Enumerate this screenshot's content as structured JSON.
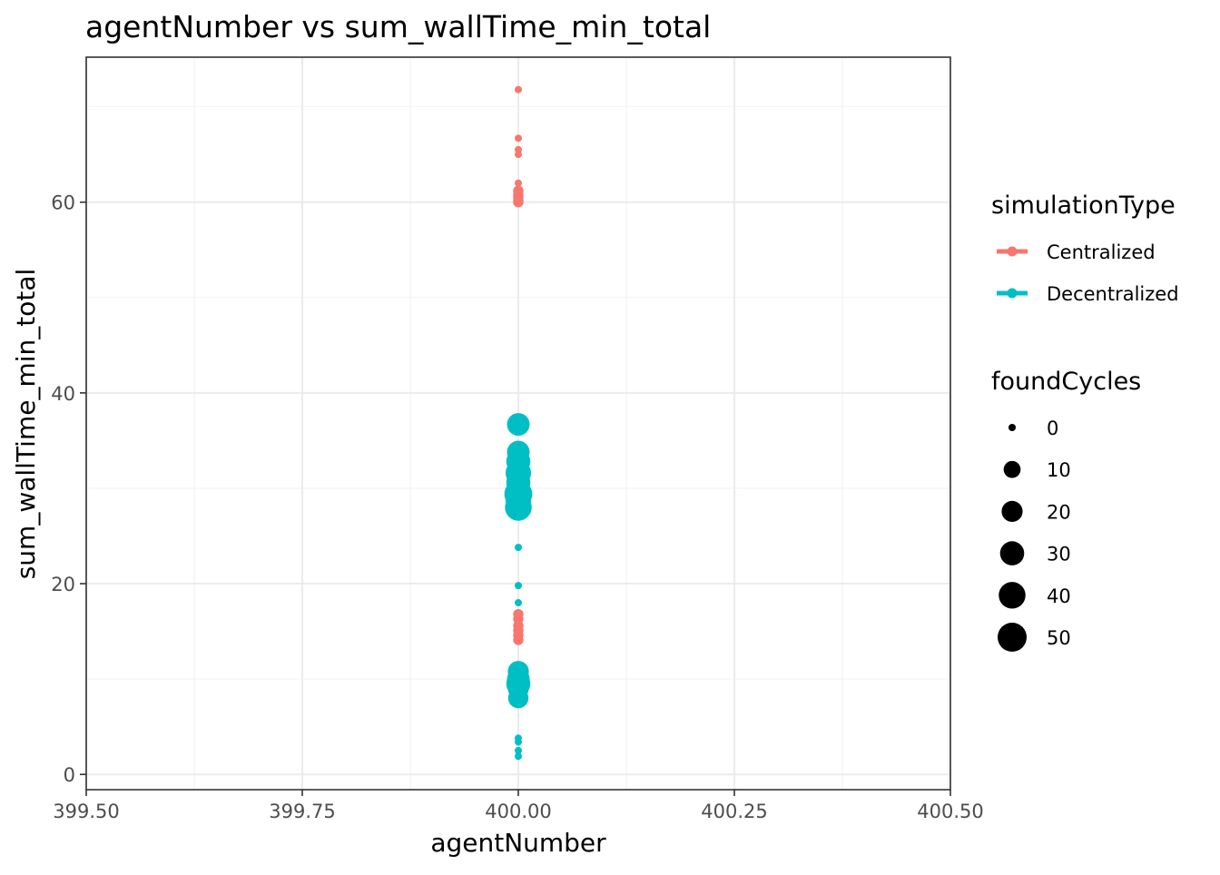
{
  "chart_data": {
    "type": "scatter",
    "title": "agentNumber  vs  sum_wallTime_min_total",
    "xlabel": "agentNumber",
    "ylabel": "sum_wallTime_min_total",
    "xlim": [
      399.5,
      400.5
    ],
    "ylim": [
      -1.6,
      75.2
    ],
    "x_ticks": [
      399.5,
      399.75,
      400.0,
      400.25,
      400.5
    ],
    "x_tick_labels": [
      "399.50",
      "399.75",
      "400.00",
      "400.25",
      "400.50"
    ],
    "y_ticks": [
      0,
      20,
      40,
      60
    ],
    "y_tick_labels": [
      "0",
      "20",
      "40",
      "60"
    ],
    "grid": true,
    "theme": "bw",
    "legend_position": "right",
    "color_legend": {
      "title": "simulationType",
      "entries": [
        {
          "label": "Centralized",
          "color": "#F8766D"
        },
        {
          "label": "Decentralized",
          "color": "#00BFC4"
        }
      ]
    },
    "size_legend": {
      "title": "foundCycles",
      "entries": [
        {
          "label": "0",
          "value": 0
        },
        {
          "label": "10",
          "value": 10
        },
        {
          "label": "20",
          "value": 20
        },
        {
          "label": "30",
          "value": 30
        },
        {
          "label": "40",
          "value": 40
        },
        {
          "label": "50",
          "value": 50
        }
      ]
    },
    "series": [
      {
        "name": "Centralized",
        "color": "#F8766D",
        "points": [
          {
            "x": 400,
            "y": 71.8,
            "size": 0
          },
          {
            "x": 400,
            "y": 66.7,
            "size": 0
          },
          {
            "x": 400,
            "y": 65.5,
            "size": 0
          },
          {
            "x": 400,
            "y": 65.0,
            "size": 0
          },
          {
            "x": 400,
            "y": 62.0,
            "size": 0
          },
          {
            "x": 400,
            "y": 61.2,
            "size": 1
          },
          {
            "x": 400,
            "y": 60.8,
            "size": 1
          },
          {
            "x": 400,
            "y": 60.5,
            "size": 1
          },
          {
            "x": 400,
            "y": 60.2,
            "size": 1
          },
          {
            "x": 400,
            "y": 60.0,
            "size": 1
          },
          {
            "x": 400,
            "y": 16.8,
            "size": 1
          },
          {
            "x": 400,
            "y": 16.3,
            "size": 1
          },
          {
            "x": 400,
            "y": 15.6,
            "size": 1
          },
          {
            "x": 400,
            "y": 15.1,
            "size": 1
          },
          {
            "x": 400,
            "y": 14.6,
            "size": 1
          },
          {
            "x": 400,
            "y": 14.1,
            "size": 1
          }
        ]
      },
      {
        "name": "Decentralized",
        "color": "#00BFC4",
        "points": [
          {
            "x": 400,
            "y": 36.7,
            "size": 25
          },
          {
            "x": 400,
            "y": 33.8,
            "size": 25
          },
          {
            "x": 400,
            "y": 32.8,
            "size": 30
          },
          {
            "x": 400,
            "y": 31.6,
            "size": 35
          },
          {
            "x": 400,
            "y": 30.6,
            "size": 30
          },
          {
            "x": 400,
            "y": 29.4,
            "size": 45
          },
          {
            "x": 400,
            "y": 28.8,
            "size": 35
          },
          {
            "x": 400,
            "y": 28.0,
            "size": 40
          },
          {
            "x": 400,
            "y": 23.8,
            "size": 0
          },
          {
            "x": 400,
            "y": 19.8,
            "size": 0
          },
          {
            "x": 400,
            "y": 18.0,
            "size": 0
          },
          {
            "x": 400,
            "y": 10.8,
            "size": 20
          },
          {
            "x": 400,
            "y": 10.0,
            "size": 25
          },
          {
            "x": 400,
            "y": 9.5,
            "size": 30
          },
          {
            "x": 400,
            "y": 9.0,
            "size": 20
          },
          {
            "x": 400,
            "y": 8.0,
            "size": 18
          },
          {
            "x": 400,
            "y": 3.8,
            "size": 0
          },
          {
            "x": 400,
            "y": 3.4,
            "size": 0
          },
          {
            "x": 400,
            "y": 2.5,
            "size": 0
          },
          {
            "x": 400,
            "y": 1.9,
            "size": 0
          }
        ]
      }
    ]
  }
}
